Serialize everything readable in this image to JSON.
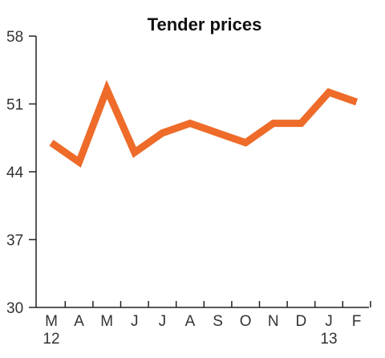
{
  "chart_data": {
    "type": "line",
    "title": "Tender prices",
    "xlabel": "",
    "ylabel": "",
    "categories": [
      "M",
      "A",
      "M",
      "J",
      "J",
      "A",
      "S",
      "O",
      "N",
      "D",
      "J",
      "F"
    ],
    "year_labels": [
      {
        "text": "12",
        "index": 0
      },
      {
        "text": "13",
        "index": 10
      }
    ],
    "series": [
      {
        "values": [
          47,
          45,
          52.5,
          46,
          48,
          49,
          48,
          47,
          49,
          49,
          52.2,
          51.2
        ],
        "color": "#EE6B29"
      }
    ],
    "yticks": [
      30,
      37,
      44,
      51,
      58
    ],
    "ylim": [
      30,
      58
    ],
    "grid": false,
    "legend": "none"
  }
}
